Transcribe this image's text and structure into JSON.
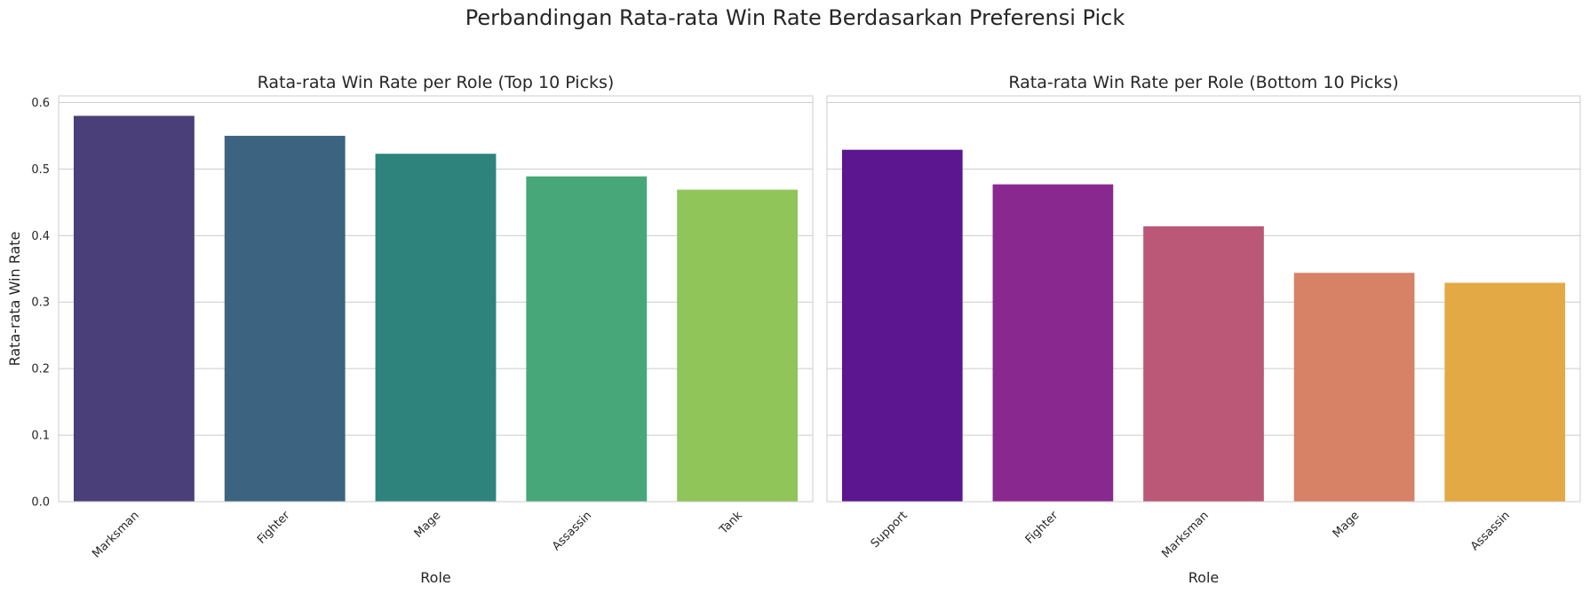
{
  "figure": {
    "title": "Perbandingan Rata-rata Win Rate Berdasarkan Preferensi Pick"
  },
  "chart_data": [
    {
      "type": "bar",
      "title": "Rata-rata Win Rate per Role (Top 10 Picks)",
      "xlabel": "Role",
      "ylabel": "Rata-rata Win Rate",
      "categories": [
        "Marksman",
        "Fighter",
        "Mage",
        "Assassin",
        "Tank"
      ],
      "values": [
        0.58,
        0.55,
        0.523,
        0.489,
        0.469
      ],
      "colors": [
        "#4a3f78",
        "#3c6480",
        "#2e837d",
        "#47a779",
        "#8fc559"
      ],
      "ylim": [
        0,
        0.61
      ],
      "yticks": [
        "0.0",
        "0.1",
        "0.2",
        "0.3",
        "0.4",
        "0.5",
        "0.6"
      ],
      "grid": true,
      "legend": "none"
    },
    {
      "type": "bar",
      "title": "Rata-rata Win Rate per Role (Bottom 10 Picks)",
      "xlabel": "Role",
      "ylabel": "",
      "categories": [
        "Support",
        "Fighter",
        "Marksman",
        "Mage",
        "Assassin"
      ],
      "values": [
        0.529,
        0.477,
        0.414,
        0.344,
        0.329
      ],
      "colors": [
        "#5b1690",
        "#89288f",
        "#bb5777",
        "#d78166",
        "#e2a945"
      ],
      "ylim": [
        0,
        0.61
      ],
      "yticks": [],
      "grid": true,
      "legend": "none"
    }
  ]
}
